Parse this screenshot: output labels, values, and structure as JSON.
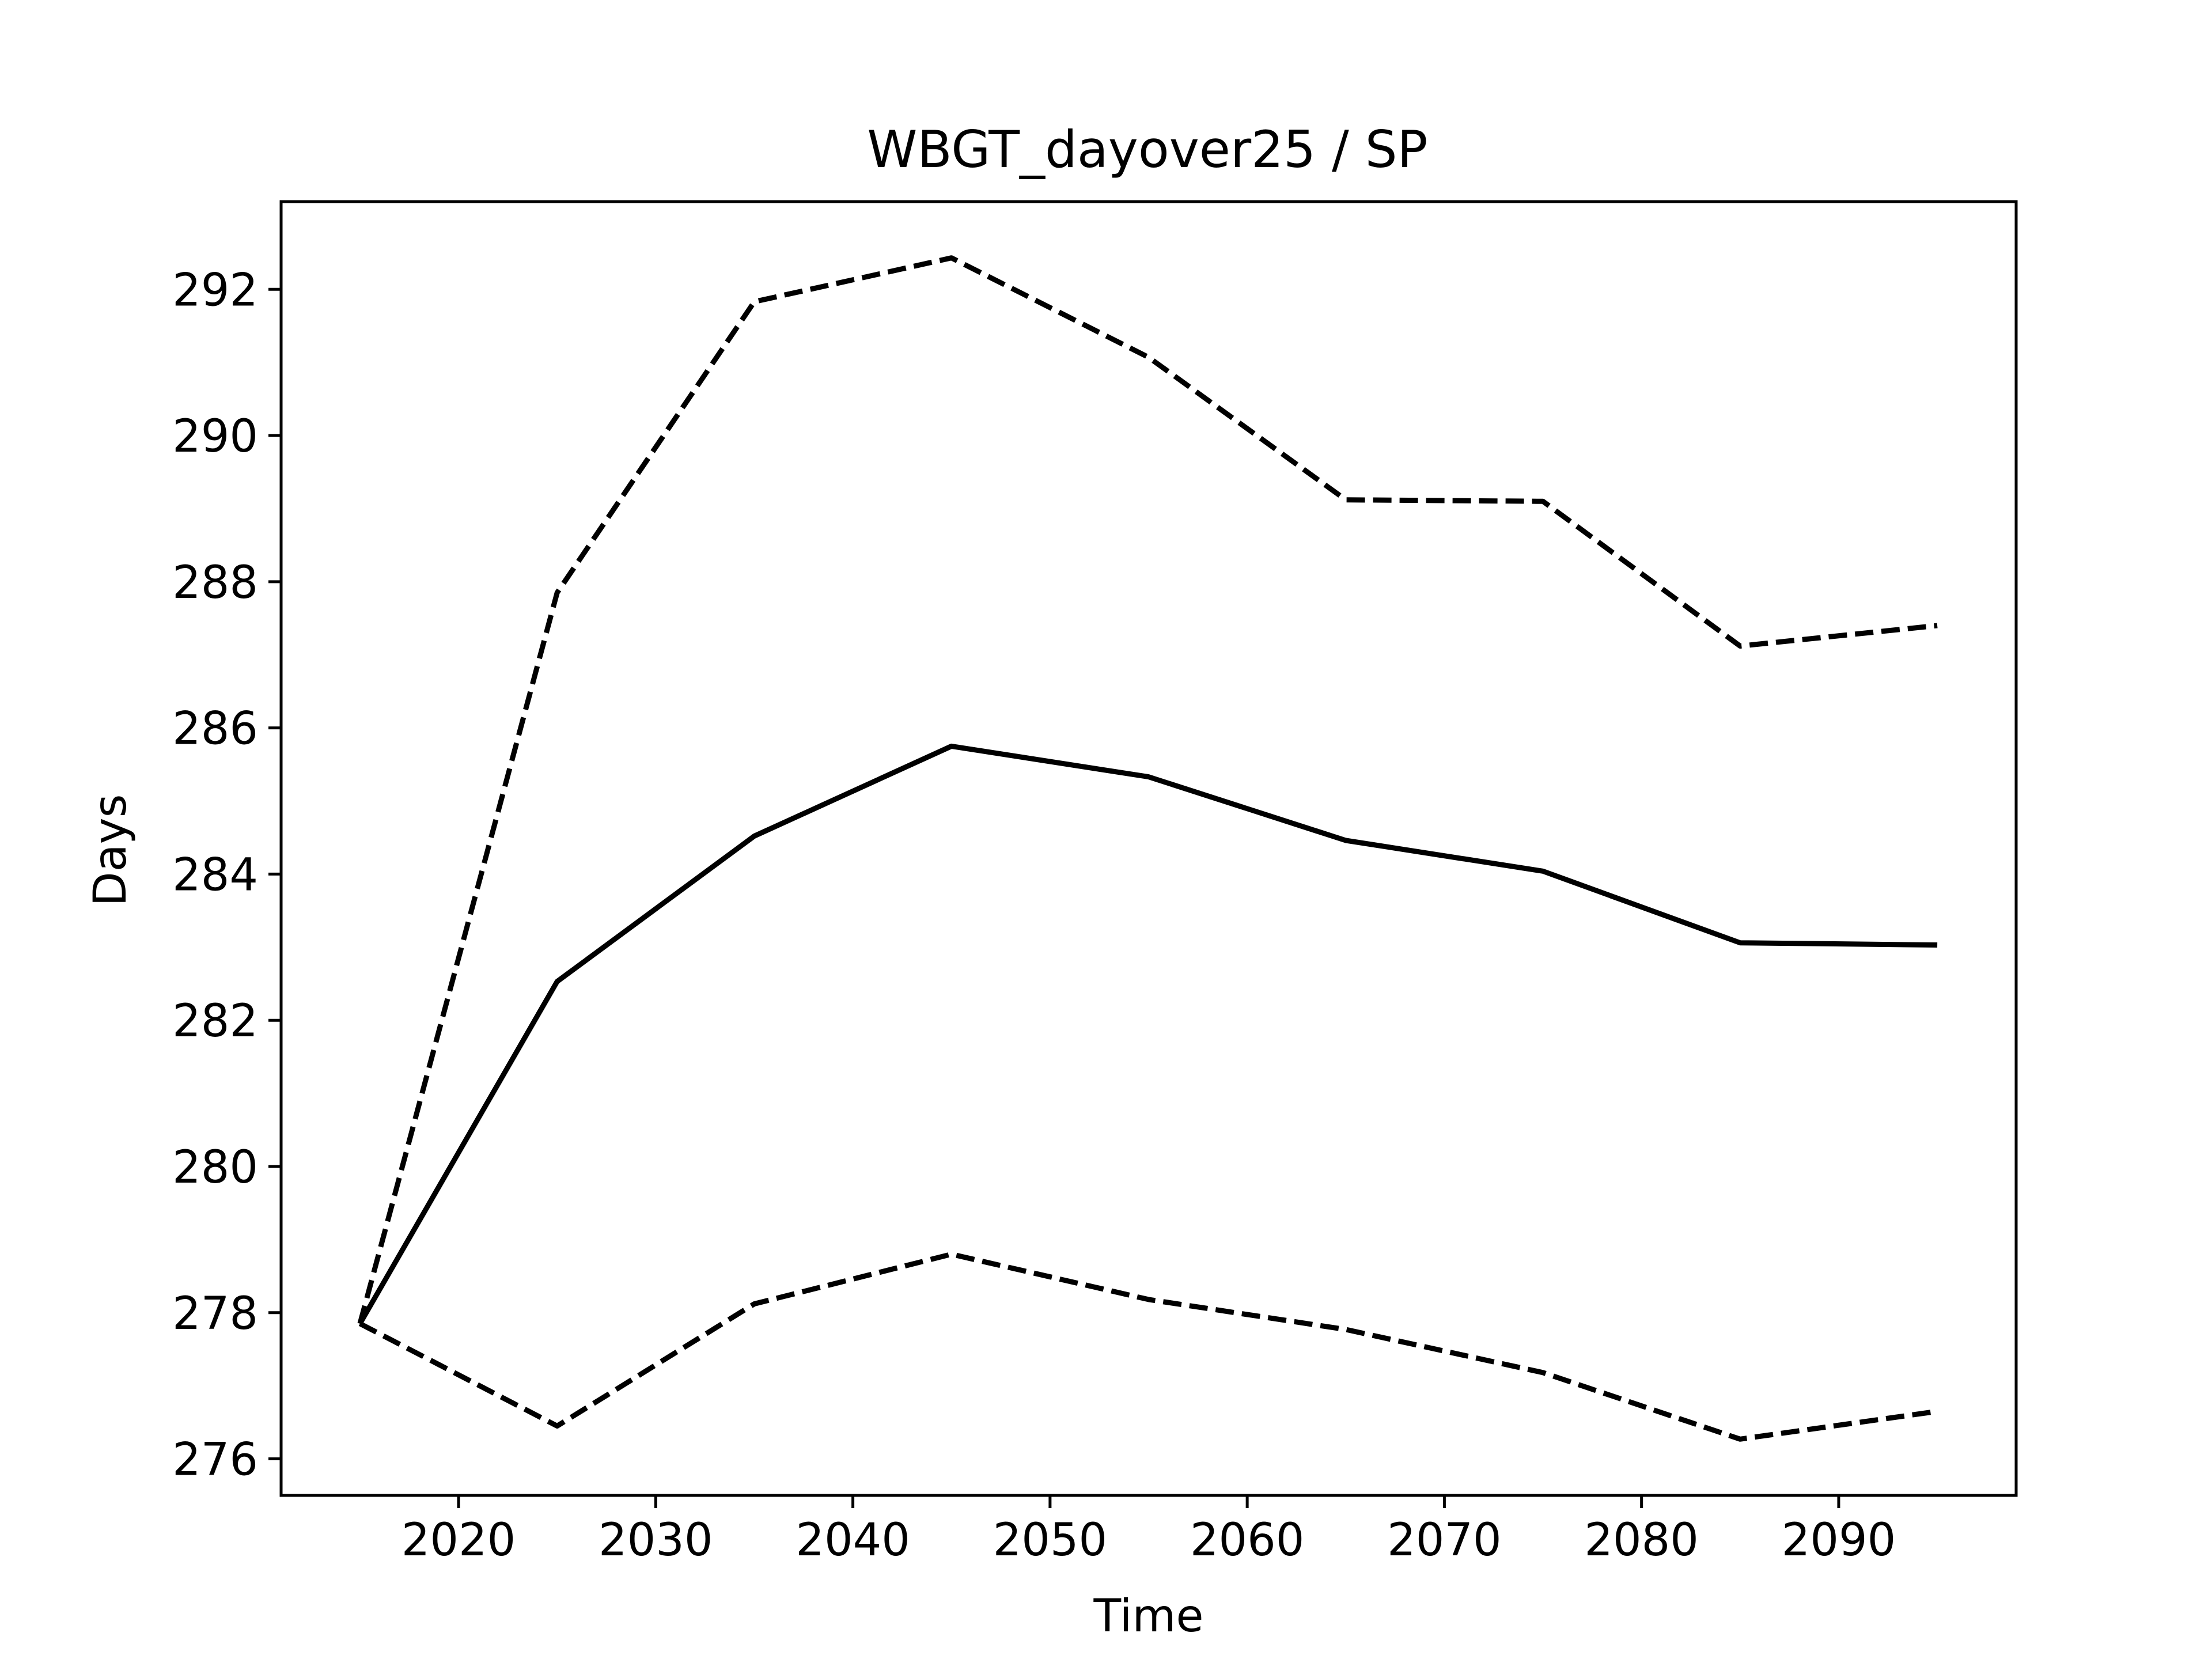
{
  "chart_data": {
    "type": "line",
    "title": "WBGT_dayover25 / SP",
    "xlabel": "Time",
    "ylabel": "Days",
    "xlim": [
      2011,
      2099
    ],
    "ylim": [
      275.5,
      293.2
    ],
    "xticks": [
      2020,
      2030,
      2040,
      2050,
      2060,
      2070,
      2080,
      2090
    ],
    "yticks": [
      276,
      278,
      280,
      282,
      284,
      286,
      288,
      290,
      292
    ],
    "grid": false,
    "legend": "none",
    "x": [
      2015,
      2025,
      2035,
      2045,
      2055,
      2065,
      2075,
      2085,
      2095
    ],
    "series": [
      {
        "style": "solid",
        "color": "#000000",
        "values": [
          277.85,
          282.53,
          284.52,
          285.75,
          285.33,
          284.46,
          284.04,
          283.06,
          283.03
        ]
      },
      {
        "style": "dashed",
        "color": "#000000",
        "values": [
          277.85,
          287.85,
          291.83,
          292.43,
          291.07,
          289.12,
          289.1,
          287.12,
          287.4
        ]
      },
      {
        "style": "dashed",
        "color": "#000000",
        "values": [
          277.85,
          276.45,
          278.12,
          278.8,
          278.18,
          277.77,
          277.18,
          276.27,
          276.65
        ]
      }
    ]
  }
}
